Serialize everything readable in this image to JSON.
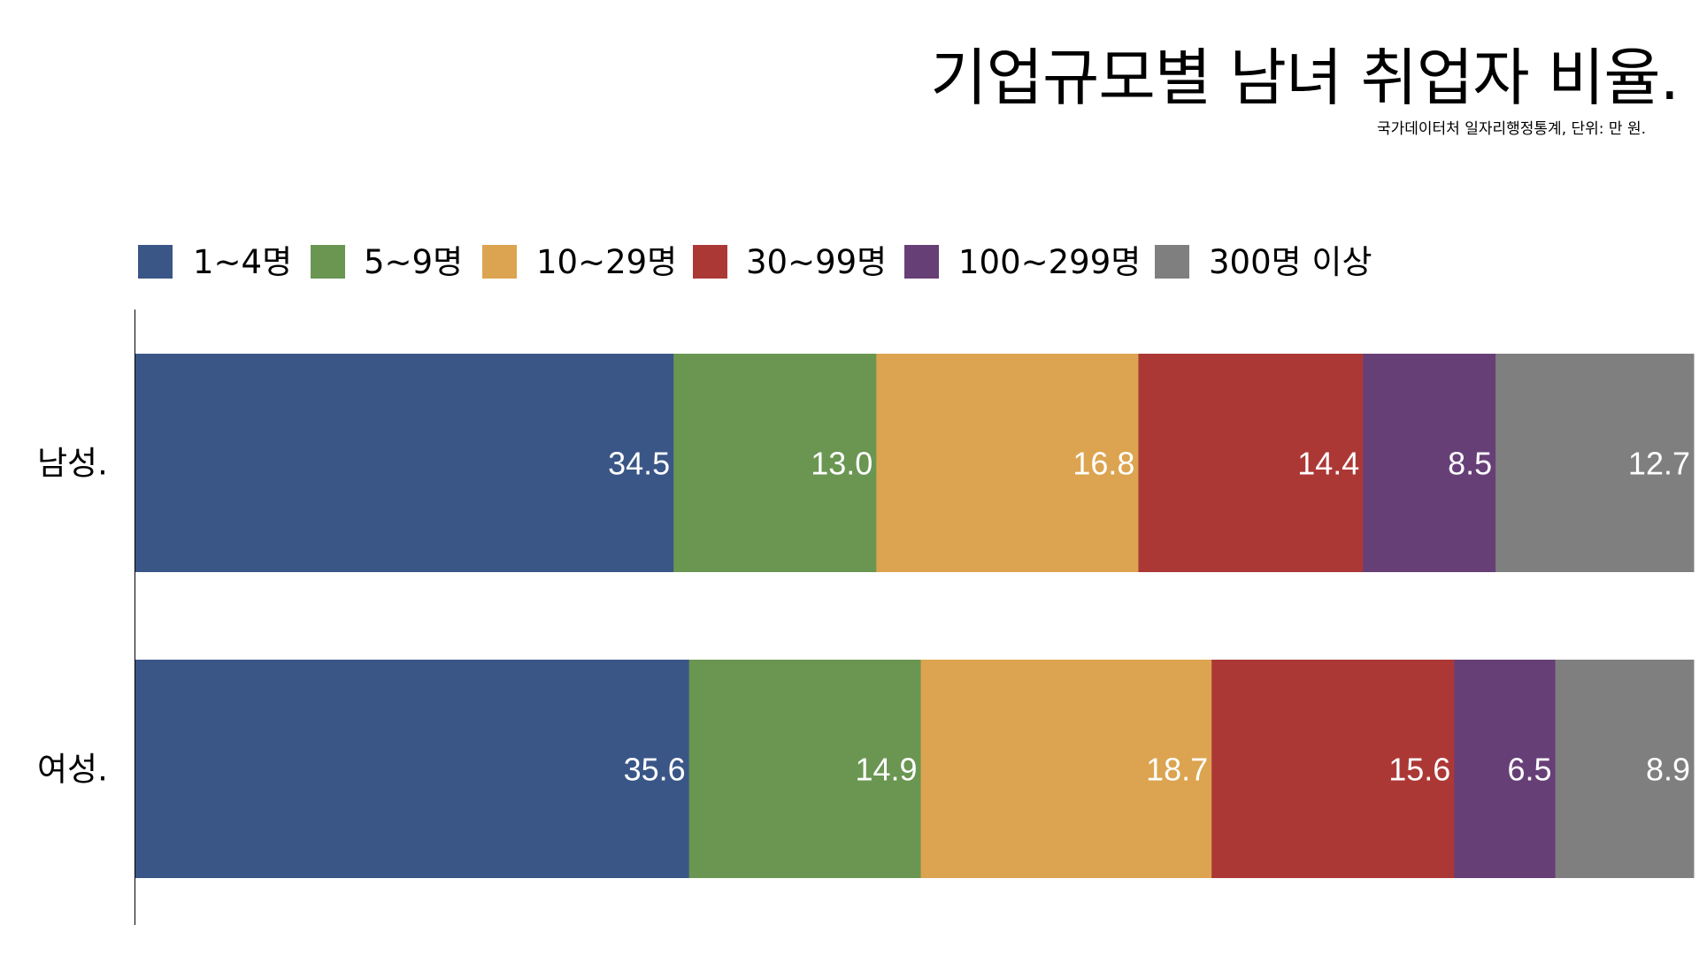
{
  "chart_data": {
    "type": "bar",
    "orientation": "horizontal",
    "stacked": true,
    "title": "기업규모별 남녀 취업자 비율.",
    "subtitle": "국가데이터처 일자리행정통계, 단위: 만 원.",
    "categories": [
      "남성.",
      "여성."
    ],
    "series": [
      {
        "name": "1~4명",
        "color": "#3a5687",
        "values": [
          34.5,
          35.6
        ]
      },
      {
        "name": "5~9명",
        "color": "#6a9652",
        "values": [
          13.0,
          14.9
        ]
      },
      {
        "name": "10~29명",
        "color": "#dca450",
        "values": [
          16.8,
          18.7
        ]
      },
      {
        "name": "30~99명",
        "color": "#ac3836",
        "values": [
          14.4,
          15.6
        ]
      },
      {
        "name": "100~299명",
        "color": "#673f77",
        "values": [
          8.5,
          6.5
        ]
      },
      {
        "name": "300명 이상",
        "color": "#7f7f7f",
        "values": [
          12.7,
          8.9
        ]
      }
    ],
    "legend_position": "top",
    "grid": false
  }
}
